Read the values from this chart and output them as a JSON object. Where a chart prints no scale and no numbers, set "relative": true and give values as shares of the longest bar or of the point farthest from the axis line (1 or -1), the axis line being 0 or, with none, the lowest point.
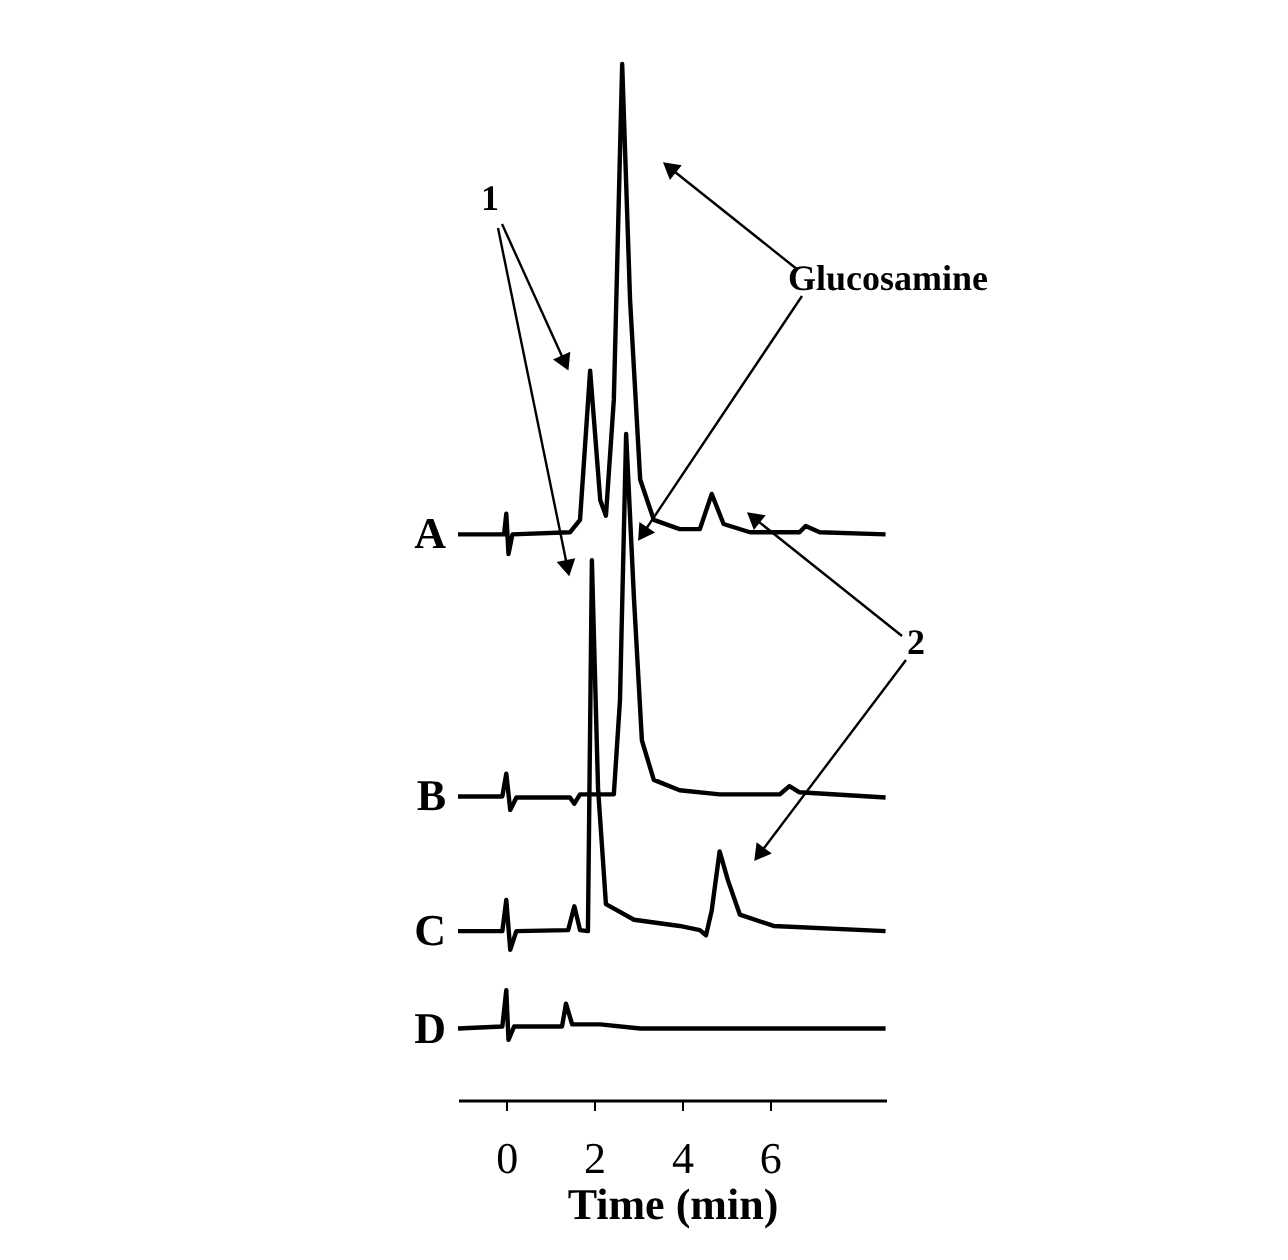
{
  "chart_data": {
    "type": "line",
    "relative": true,
    "xlabel": "Time (min)",
    "xlim": [
      -1.1,
      8.65
    ],
    "xticks": [
      0,
      2,
      4,
      6
    ],
    "line_style": "solid",
    "series": [
      {
        "name": "A",
        "color": "#000000",
        "x": [
          -1.1,
          -0.05,
          0,
          0.05,
          0.14,
          1.45,
          1.68,
          1.91,
          2.14,
          2.27,
          2.45,
          2.64,
          2.82,
          3.05,
          3.36,
          3.95,
          4.41,
          4.68,
          4.95,
          5.55,
          6.68,
          6.82,
          7.14,
          8.64
        ],
        "values": [
          0.546,
          0.546,
          0.566,
          0.527,
          0.546,
          0.548,
          0.56,
          0.704,
          0.579,
          0.564,
          0.676,
          1.0,
          0.772,
          0.599,
          0.56,
          0.551,
          0.551,
          0.585,
          0.556,
          0.548,
          0.548,
          0.554,
          0.548,
          0.546
        ]
      },
      {
        "name": "B",
        "color": "#000000",
        "x": [
          -1.1,
          -0.09,
          0,
          0.09,
          0.23,
          1.45,
          1.55,
          1.68,
          2.45,
          2.59,
          2.73,
          2.91,
          3.09,
          3.36,
          3.95,
          4.86,
          6.23,
          6.45,
          6.68,
          8.64
        ],
        "values": [
          0.293,
          0.293,
          0.315,
          0.28,
          0.292,
          0.292,
          0.286,
          0.295,
          0.295,
          0.386,
          0.643,
          0.483,
          0.347,
          0.309,
          0.299,
          0.295,
          0.295,
          0.303,
          0.297,
          0.292
        ]
      },
      {
        "name": "C",
        "color": "#000000",
        "x": [
          -1.1,
          -0.09,
          0,
          0.09,
          0.23,
          1.41,
          1.55,
          1.68,
          1.86,
          1.95,
          2.09,
          2.27,
          2.91,
          3.95,
          4.41,
          4.55,
          4.68,
          4.86,
          5.05,
          5.32,
          6.09,
          8.64
        ],
        "values": [
          0.163,
          0.163,
          0.193,
          0.145,
          0.163,
          0.164,
          0.187,
          0.164,
          0.163,
          0.521,
          0.301,
          0.189,
          0.174,
          0.168,
          0.164,
          0.159,
          0.183,
          0.24,
          0.212,
          0.179,
          0.168,
          0.163
        ]
      },
      {
        "name": "D",
        "color": "#000000",
        "x": [
          -1.1,
          -0.09,
          0,
          0.05,
          0.18,
          1.27,
          1.36,
          1.5,
          2.14,
          3.05,
          8.64
        ],
        "values": [
          0.069,
          0.071,
          0.106,
          0.058,
          0.071,
          0.071,
          0.093,
          0.073,
          0.073,
          0.069,
          0.069
        ]
      }
    ],
    "annotations": [
      "1",
      "Glucosamine",
      "2"
    ]
  }
}
